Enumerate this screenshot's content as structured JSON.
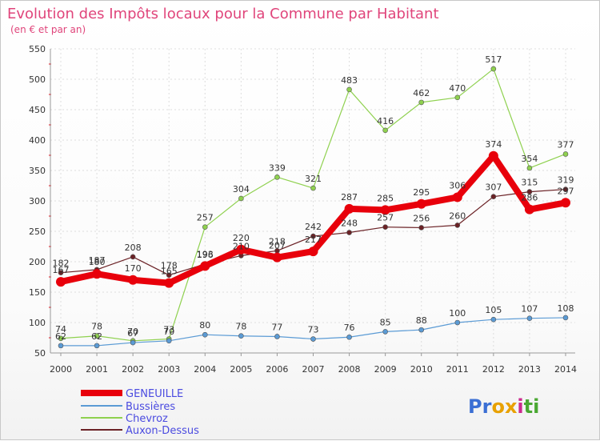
{
  "chart_data": {
    "type": "line",
    "title": "Evolution des Impôts locaux pour la Commune par Habitant",
    "subtitle": "(en € et par an)",
    "x": [
      "2000",
      "2001",
      "2002",
      "2003",
      "2004",
      "2005",
      "2006",
      "2007",
      "2008",
      "2009",
      "2010",
      "2011",
      "2012",
      "2013",
      "2014"
    ],
    "ylim": [
      50,
      550
    ],
    "yticks": [
      "50",
      "100",
      "150",
      "200",
      "250",
      "300",
      "350",
      "400",
      "450",
      "500",
      "550"
    ],
    "series": [
      {
        "name": "GENEUILLE",
        "color": "#e8000b",
        "values": [
          167,
          180,
          170,
          165,
          193,
          220,
          207,
          217,
          287,
          285,
          295,
          306,
          374,
          286,
          297
        ]
      },
      {
        "name": "Bussières",
        "color": "#5b9bd5",
        "values": [
          62,
          62,
          67,
          70,
          80,
          78,
          77,
          73,
          76,
          85,
          88,
          100,
          105,
          107,
          108
        ]
      },
      {
        "name": "Chevroz",
        "color": "#8fd14f",
        "values": [
          74,
          78,
          70,
          73,
          257,
          304,
          339,
          321,
          483,
          416,
          462,
          470,
          517,
          354,
          377
        ]
      },
      {
        "name": "Auxon-Dessus",
        "color": "#6b2226",
        "values": [
          182,
          187,
          208,
          178,
          196,
          210,
          218,
          242,
          248,
          257,
          256,
          260,
          307,
          315,
          319
        ]
      }
    ]
  },
  "colors": {
    "title": "#e0457b",
    "legend_text": "#4a4ae0",
    "grid": "#dddddd",
    "axis": "#999999"
  },
  "brand": {
    "letters": [
      "P",
      "r",
      "o",
      "x",
      "i",
      "t",
      "i"
    ],
    "colors": [
      "#3b6fd4",
      "#3b6fd4",
      "#e8a100",
      "#e8a100",
      "#cc2a8e",
      "#4aa832",
      "#4aa832"
    ]
  }
}
